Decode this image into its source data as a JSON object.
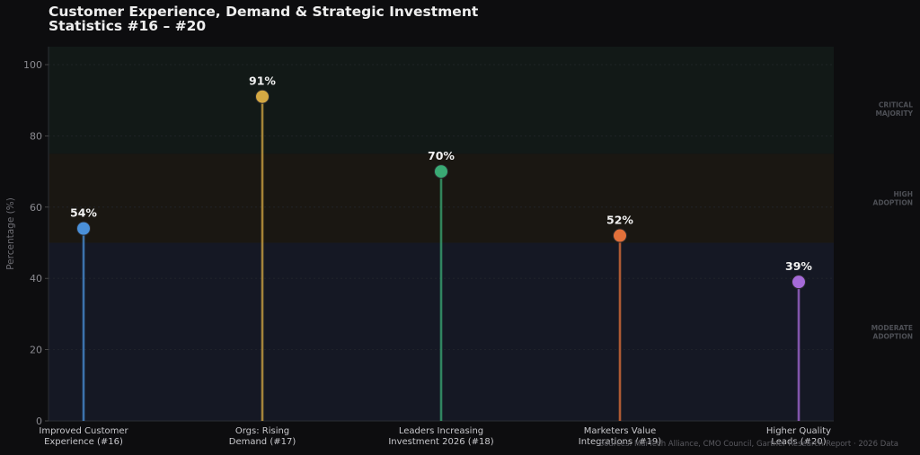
{
  "chart_data": {
    "type": "lollipop",
    "title": "Customer Experience, Demand & Strategic Investment\nStatistics #16 – #20",
    "ylabel": "Percentage (%)",
    "xlabel": "",
    "ylim": [
      0,
      100
    ],
    "yticks": [
      0,
      20,
      40,
      60,
      80,
      100
    ],
    "grid": true,
    "categories": [
      "Improved Customer\nExperience (#16)",
      "Orgs: Rising\nDemand (#17)",
      "Leaders Increasing\nInvestment 2026 (#18)",
      "Marketers Value\nIntegrations (#19)",
      "Higher Quality\nLeads (#20)"
    ],
    "values": [
      54,
      91,
      70,
      52,
      39
    ],
    "value_labels": [
      "54%",
      "91%",
      "70%",
      "52%",
      "39%"
    ],
    "colors": [
      "#4a90d9",
      "#d4a843",
      "#3aaa74",
      "#e2703a",
      "#a56ad8"
    ],
    "bands": [
      {
        "label": "MODERATE\nADOPTION",
        "from": 0,
        "to": 50,
        "color": "#151824"
      },
      {
        "label": "HIGH\nADOPTION",
        "from": 50,
        "to": 75,
        "color": "#1a1712"
      },
      {
        "label": "CRITICAL\nMAJORITY",
        "from": 75,
        "to": 100,
        "color": "#121917"
      }
    ],
    "source": "Sources: MarTech Alliance, CMO Council, Gartner Research Report · 2026 Data"
  }
}
